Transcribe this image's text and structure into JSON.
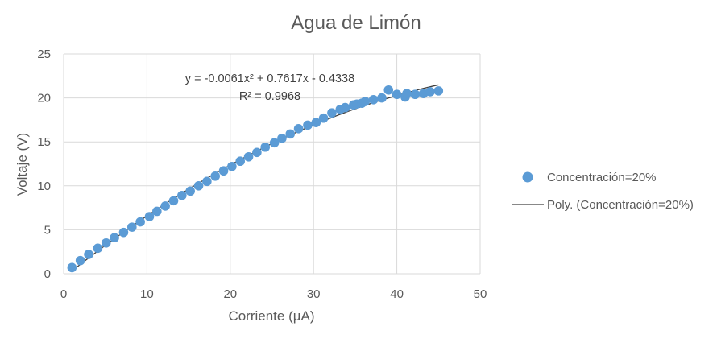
{
  "chart_data": {
    "type": "scatter",
    "title": "Agua de Limón",
    "xlabel": "Corriente (µA)",
    "ylabel": "Voltaje (V)",
    "xlim": [
      0,
      50
    ],
    "ylim": [
      0,
      25
    ],
    "xticks": [
      0,
      10,
      20,
      30,
      40,
      50
    ],
    "yticks": [
      0,
      5,
      10,
      15,
      20,
      25
    ],
    "grid": true,
    "legend_position": "right",
    "series": [
      {
        "name": "Concentración=20%",
        "color": "#5b9bd5",
        "points": [
          [
            1.0,
            0.7
          ],
          [
            2.0,
            1.5
          ],
          [
            3.0,
            2.2
          ],
          [
            4.1,
            2.9
          ],
          [
            5.1,
            3.5
          ],
          [
            6.1,
            4.1
          ],
          [
            7.2,
            4.7
          ],
          [
            8.2,
            5.3
          ],
          [
            9.2,
            5.9
          ],
          [
            10.3,
            6.5
          ],
          [
            11.2,
            7.1
          ],
          [
            12.2,
            7.7
          ],
          [
            13.2,
            8.3
          ],
          [
            14.2,
            8.9
          ],
          [
            15.2,
            9.4
          ],
          [
            16.2,
            10.0
          ],
          [
            17.2,
            10.5
          ],
          [
            18.2,
            11.1
          ],
          [
            19.2,
            11.7
          ],
          [
            20.2,
            12.2
          ],
          [
            21.2,
            12.8
          ],
          [
            22.2,
            13.3
          ],
          [
            23.2,
            13.8
          ],
          [
            24.2,
            14.4
          ],
          [
            25.3,
            14.9
          ],
          [
            26.2,
            15.4
          ],
          [
            27.2,
            15.9
          ],
          [
            28.2,
            16.5
          ],
          [
            29.3,
            16.9
          ],
          [
            30.3,
            17.2
          ],
          [
            31.2,
            17.7
          ],
          [
            32.2,
            18.3
          ],
          [
            33.2,
            18.7
          ],
          [
            33.8,
            18.9
          ],
          [
            34.8,
            19.2
          ],
          [
            35.2,
            19.3
          ],
          [
            35.8,
            19.4
          ],
          [
            36.2,
            19.6
          ],
          [
            37.2,
            19.8
          ],
          [
            38.2,
            20.0
          ],
          [
            39.0,
            20.9
          ],
          [
            40.0,
            20.4
          ],
          [
            41.0,
            20.1
          ],
          [
            41.2,
            20.5
          ],
          [
            42.2,
            20.4
          ],
          [
            43.2,
            20.5
          ],
          [
            44.0,
            20.7
          ],
          [
            45.0,
            20.8
          ]
        ]
      }
    ],
    "trendline": {
      "name": "Poly. (Concentración=20%)",
      "color": "#404040",
      "coefficients": {
        "a": -0.0061,
        "b": 0.7617,
        "c": -0.4338
      },
      "x_range": [
        1,
        45
      ],
      "equation_label": "y = -0.0061x² + 0.7617x - 0.4338",
      "r2_label": "R² = 0.9968"
    }
  }
}
